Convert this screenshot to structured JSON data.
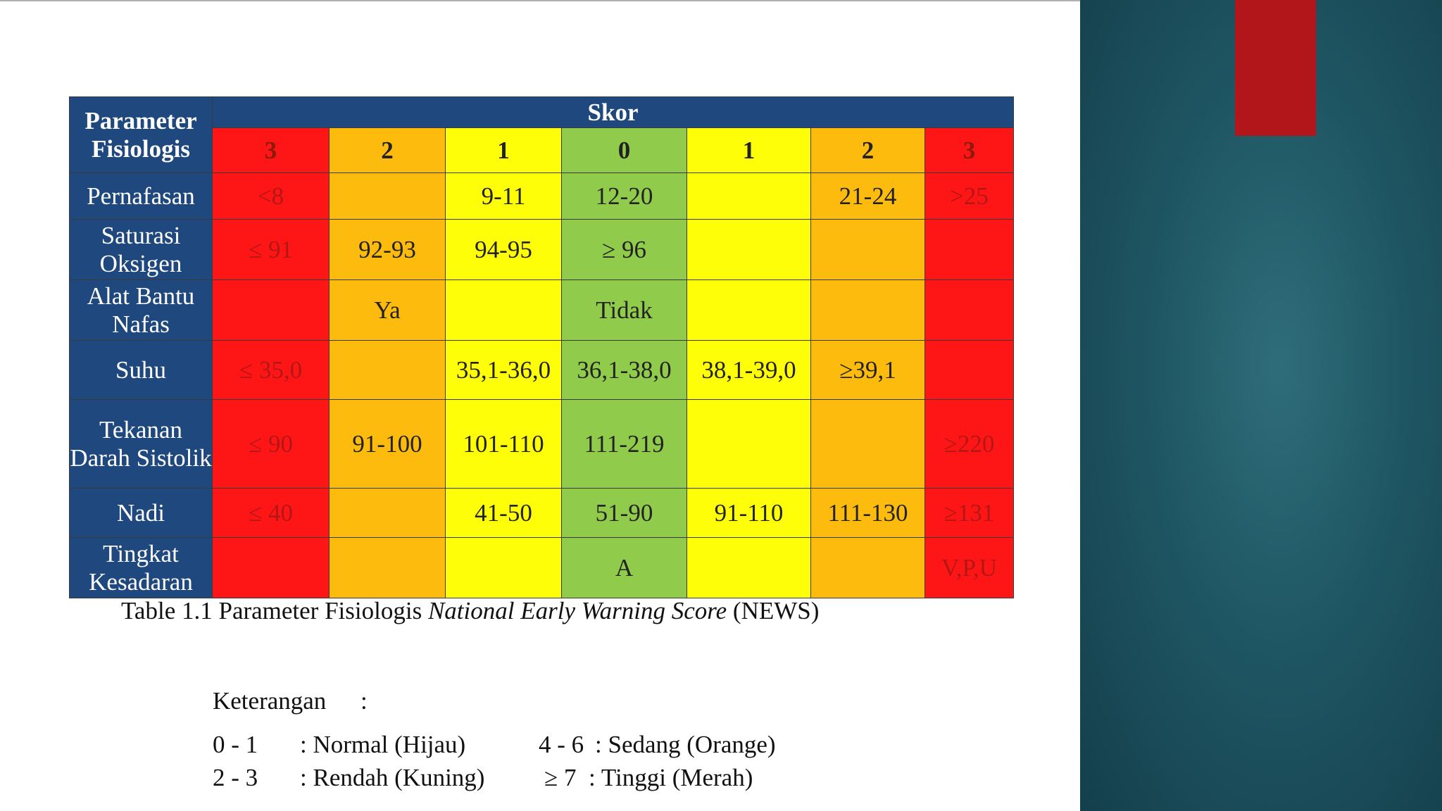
{
  "colors": {
    "header_blue": "#1f487e",
    "red": "#fe1616",
    "orange": "#fdbb0e",
    "yellow": "#fefe08",
    "green": "#90cb4b",
    "accent": "#b2161a"
  },
  "table": {
    "param_header": "Parameter Fisiologis",
    "skor_header": "Skor",
    "scores": [
      "3",
      "2",
      "1",
      "0",
      "1",
      "2",
      "3"
    ],
    "rows": [
      {
        "param": "Pernafasan",
        "cells": [
          "<8",
          "",
          "9-11",
          "12-20",
          "",
          "21-24",
          ">25"
        ]
      },
      {
        "param": "Saturasi Oksigen",
        "cells": [
          "≤ 91",
          "92-93",
          "94-95",
          "≥ 96",
          "",
          "",
          ""
        ]
      },
      {
        "param": "Alat Bantu Nafas",
        "cells": [
          "",
          "Ya",
          "",
          "Tidak",
          "",
          "",
          ""
        ]
      },
      {
        "param": "Suhu",
        "cells": [
          "≤ 35,0",
          "",
          "35,1-36,0",
          "36,1-38,0",
          "38,1-39,0",
          "≥39,1",
          ""
        ]
      },
      {
        "param": "Tekanan Darah Sistolik",
        "cells": [
          "≤ 90",
          "91-100",
          "101-110",
          "111-219",
          "",
          "",
          "≥220"
        ]
      },
      {
        "param": "Nadi",
        "cells": [
          "≤ 40",
          "",
          "41-50",
          "51-90",
          "91-110",
          "111-130",
          "≥131"
        ]
      },
      {
        "param": "Tingkat Kesadaran",
        "cells": [
          "",
          "",
          "",
          "A",
          "",
          "",
          "V,P,U"
        ]
      }
    ]
  },
  "caption": {
    "prefix": "Table 1.1 Parameter Fisiologis ",
    "italic": "National Early Warning Score",
    "suffix": " (NEWS)"
  },
  "legend": {
    "title": "Keterangan",
    "colon": ":",
    "items": [
      {
        "range": "0 - 1",
        "label": ": Normal (Hijau)"
      },
      {
        "range": "2 - 3",
        "label": ": Rendah (Kuning)"
      },
      {
        "range": "4 - 6",
        "label": ": Sedang (Orange)"
      },
      {
        "range": "≥ 7",
        "label": ": Tinggi (Merah)"
      }
    ]
  }
}
